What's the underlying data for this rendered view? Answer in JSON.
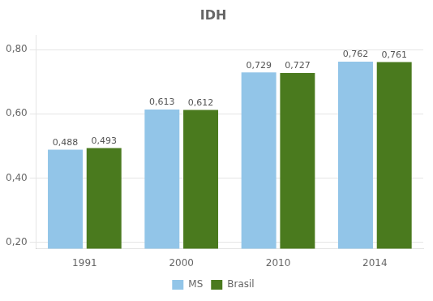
{
  "chart_data": {
    "type": "bar",
    "title": "IDH",
    "categories": [
      "1991",
      "2000",
      "2010",
      "2014"
    ],
    "series": [
      {
        "name": "MS",
        "color": "#92C5E8",
        "values": [
          0.488,
          0.613,
          0.729,
          0.762
        ],
        "value_labels": [
          "0,488",
          "0,613",
          "0,729",
          "0,762"
        ]
      },
      {
        "name": "Brasil",
        "color": "#4A7A1E",
        "values": [
          0.493,
          0.612,
          0.727,
          0.761
        ],
        "value_labels": [
          "0,493",
          "0,612",
          "0,727",
          "0,761"
        ]
      }
    ],
    "ylim": [
      0.18,
      0.845
    ],
    "yticks": [
      {
        "value": 0.2,
        "label": "0,20"
      },
      {
        "value": 0.4,
        "label": "0,40"
      },
      {
        "value": 0.6,
        "label": "0,60"
      },
      {
        "value": 0.8,
        "label": "0,80"
      }
    ],
    "grid": true,
    "legend": "bottom",
    "data_labels": true
  }
}
